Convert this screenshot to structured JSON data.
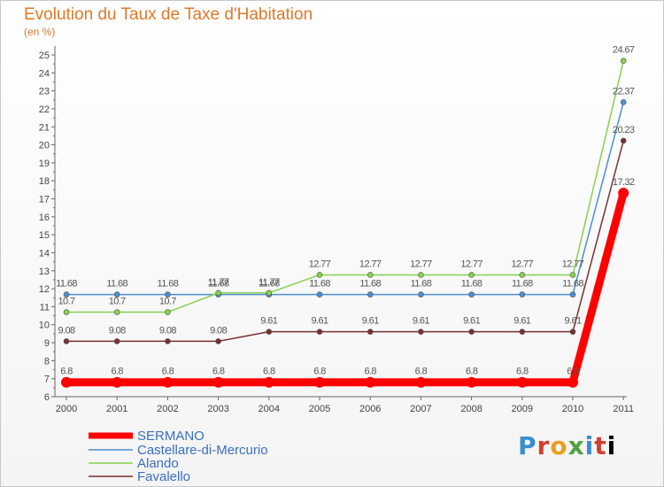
{
  "chart_data": {
    "type": "line",
    "title": "Evolution du Taux de Taxe d'Habitation",
    "subtitle": "(en %)",
    "x": [
      "2000",
      "2001",
      "2002",
      "2003",
      "2004",
      "2005",
      "2006",
      "2007",
      "2008",
      "2009",
      "2010",
      "2011"
    ],
    "ylim": [
      6,
      25
    ],
    "yticks": [
      6,
      7,
      8,
      9,
      10,
      11,
      12,
      13,
      14,
      15,
      16,
      17,
      18,
      19,
      20,
      21,
      22,
      23,
      24,
      25
    ],
    "grid": false,
    "legend_placement": "bottom-left",
    "series": [
      {
        "name": "SERMANO",
        "color": "#ff0000",
        "values": [
          6.8,
          6.8,
          6.8,
          6.8,
          6.8,
          6.8,
          6.8,
          6.8,
          6.8,
          6.8,
          6.8,
          17.32
        ],
        "labels": [
          "6.8",
          "6.8",
          "6.8",
          "6.8",
          "6.8",
          "6.8",
          "6.8",
          "6.8",
          "6.8",
          "6.8",
          "6.8",
          "17.32"
        ]
      },
      {
        "name": "Castellare-di-Mercurio",
        "color": "#4a90d0",
        "values": [
          11.68,
          11.68,
          11.68,
          11.68,
          11.68,
          11.68,
          11.68,
          11.68,
          11.68,
          11.68,
          11.68,
          22.37
        ],
        "labels": [
          "11.68",
          "11.68",
          "11.68",
          "11.68",
          "11.68",
          "11.68",
          "11.68",
          "11.68",
          "11.68",
          "11.68",
          "11.68",
          "22.37"
        ]
      },
      {
        "name": "Alando",
        "color": "#88d050",
        "values": [
          10.7,
          10.7,
          10.7,
          11.77,
          11.77,
          12.77,
          12.77,
          12.77,
          12.77,
          12.77,
          12.77,
          24.67
        ],
        "labels": [
          "10.7",
          "10.7",
          "10.7",
          "11.77",
          "11.77",
          "12.77",
          "12.77",
          "12.77",
          "12.77",
          "12.77",
          "12.77",
          "24.67"
        ]
      },
      {
        "name": "Favalello",
        "color": "#7a3030",
        "values": [
          9.08,
          9.08,
          9.08,
          9.08,
          9.61,
          9.61,
          9.61,
          9.61,
          9.61,
          9.61,
          9.61,
          20.23
        ],
        "labels": [
          "9.08",
          "9.08",
          "9.08",
          "9.08",
          "9.61",
          "9.61",
          "9.61",
          "9.61",
          "9.61",
          "9.61",
          "9.61",
          "20.23"
        ]
      }
    ]
  },
  "logo_text": [
    "P",
    "r",
    "o",
    "x",
    "i",
    "t",
    "i"
  ]
}
